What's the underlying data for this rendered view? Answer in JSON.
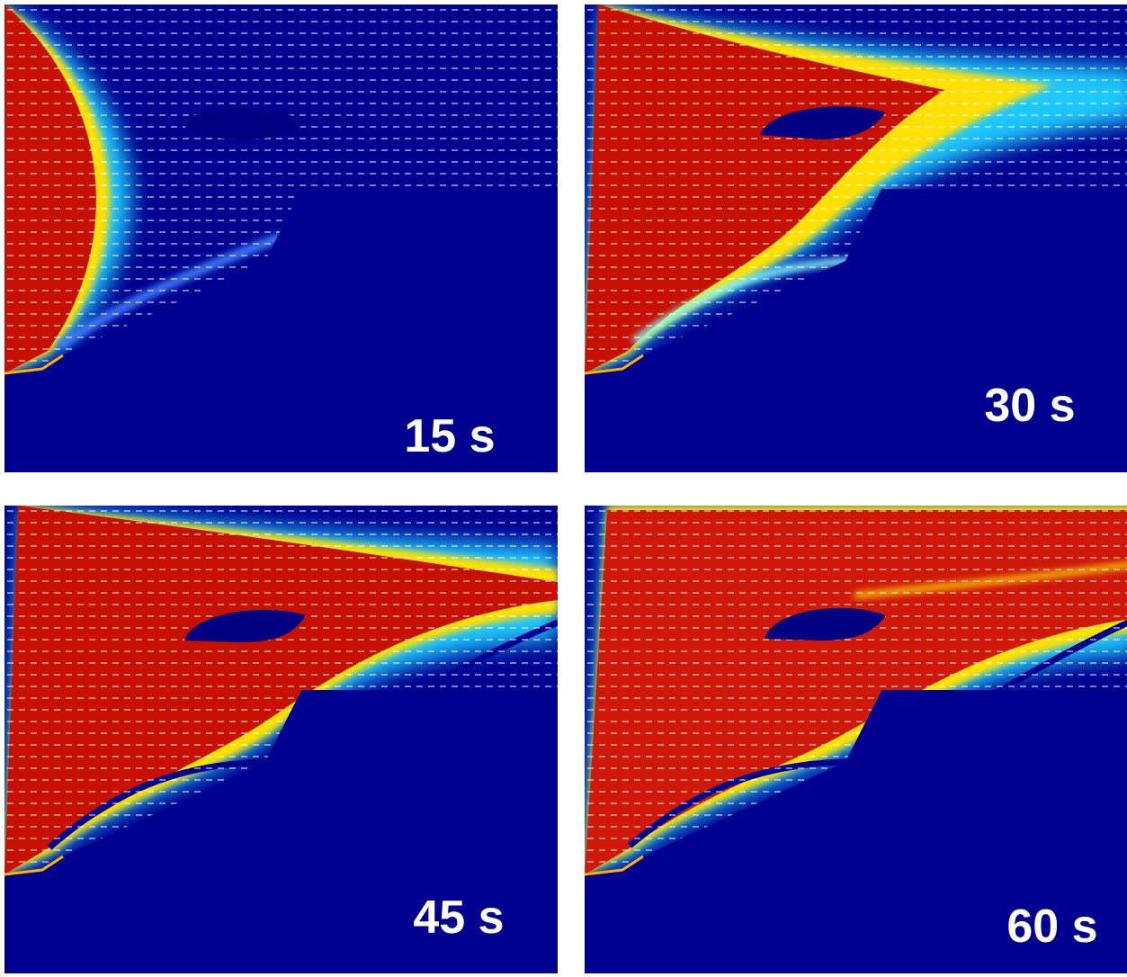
{
  "panels": [
    {
      "label": "15 s"
    },
    {
      "label": "30 s"
    },
    {
      "label": "45 s"
    },
    {
      "label": "60 s"
    }
  ]
}
